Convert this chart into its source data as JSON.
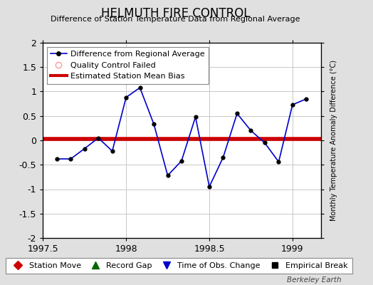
{
  "title": "HELMUTH FIRE CONTROL",
  "subtitle": "Difference of Station Temperature Data from Regional Average",
  "ylabel_right": "Monthly Temperature Anomaly Difference (°C)",
  "watermark": "Berkeley Earth",
  "xlim": [
    1997.5,
    1999.17
  ],
  "ylim": [
    -2,
    2
  ],
  "yticks": [
    -2,
    -1.5,
    -1,
    -0.5,
    0,
    0.5,
    1,
    1.5,
    2
  ],
  "xticks": [
    1997.5,
    1998,
    1998.5,
    1999
  ],
  "xticklabels": [
    "1997.5",
    "1998",
    "1998.5",
    "1999"
  ],
  "background_color": "#e0e0e0",
  "plot_bg_color": "#ffffff",
  "grid_color": "#c8c8c8",
  "data_x": [
    1997.583,
    1997.667,
    1997.75,
    1997.833,
    1997.917,
    1998.0,
    1998.083,
    1998.167,
    1998.25,
    1998.333,
    1998.417,
    1998.5,
    1998.583,
    1998.667,
    1998.75,
    1998.833,
    1998.917,
    1999.0,
    1999.083
  ],
  "data_y": [
    -0.38,
    -0.38,
    -0.17,
    0.05,
    -0.22,
    0.88,
    1.08,
    0.33,
    -0.72,
    -0.42,
    0.48,
    -0.95,
    -0.35,
    0.55,
    0.2,
    -0.05,
    -0.44,
    0.73,
    0.85
  ],
  "line_color": "#0000cc",
  "marker_color": "#000000",
  "bias_line_x": [
    1997.5,
    1999.17
  ],
  "bias_line_y": [
    0.03,
    0.03
  ],
  "bias_color": "#cc0000",
  "bias_linewidth": 4.0,
  "title_fontsize": 12,
  "subtitle_fontsize": 8,
  "tick_fontsize": 9,
  "legend_fontsize": 8
}
